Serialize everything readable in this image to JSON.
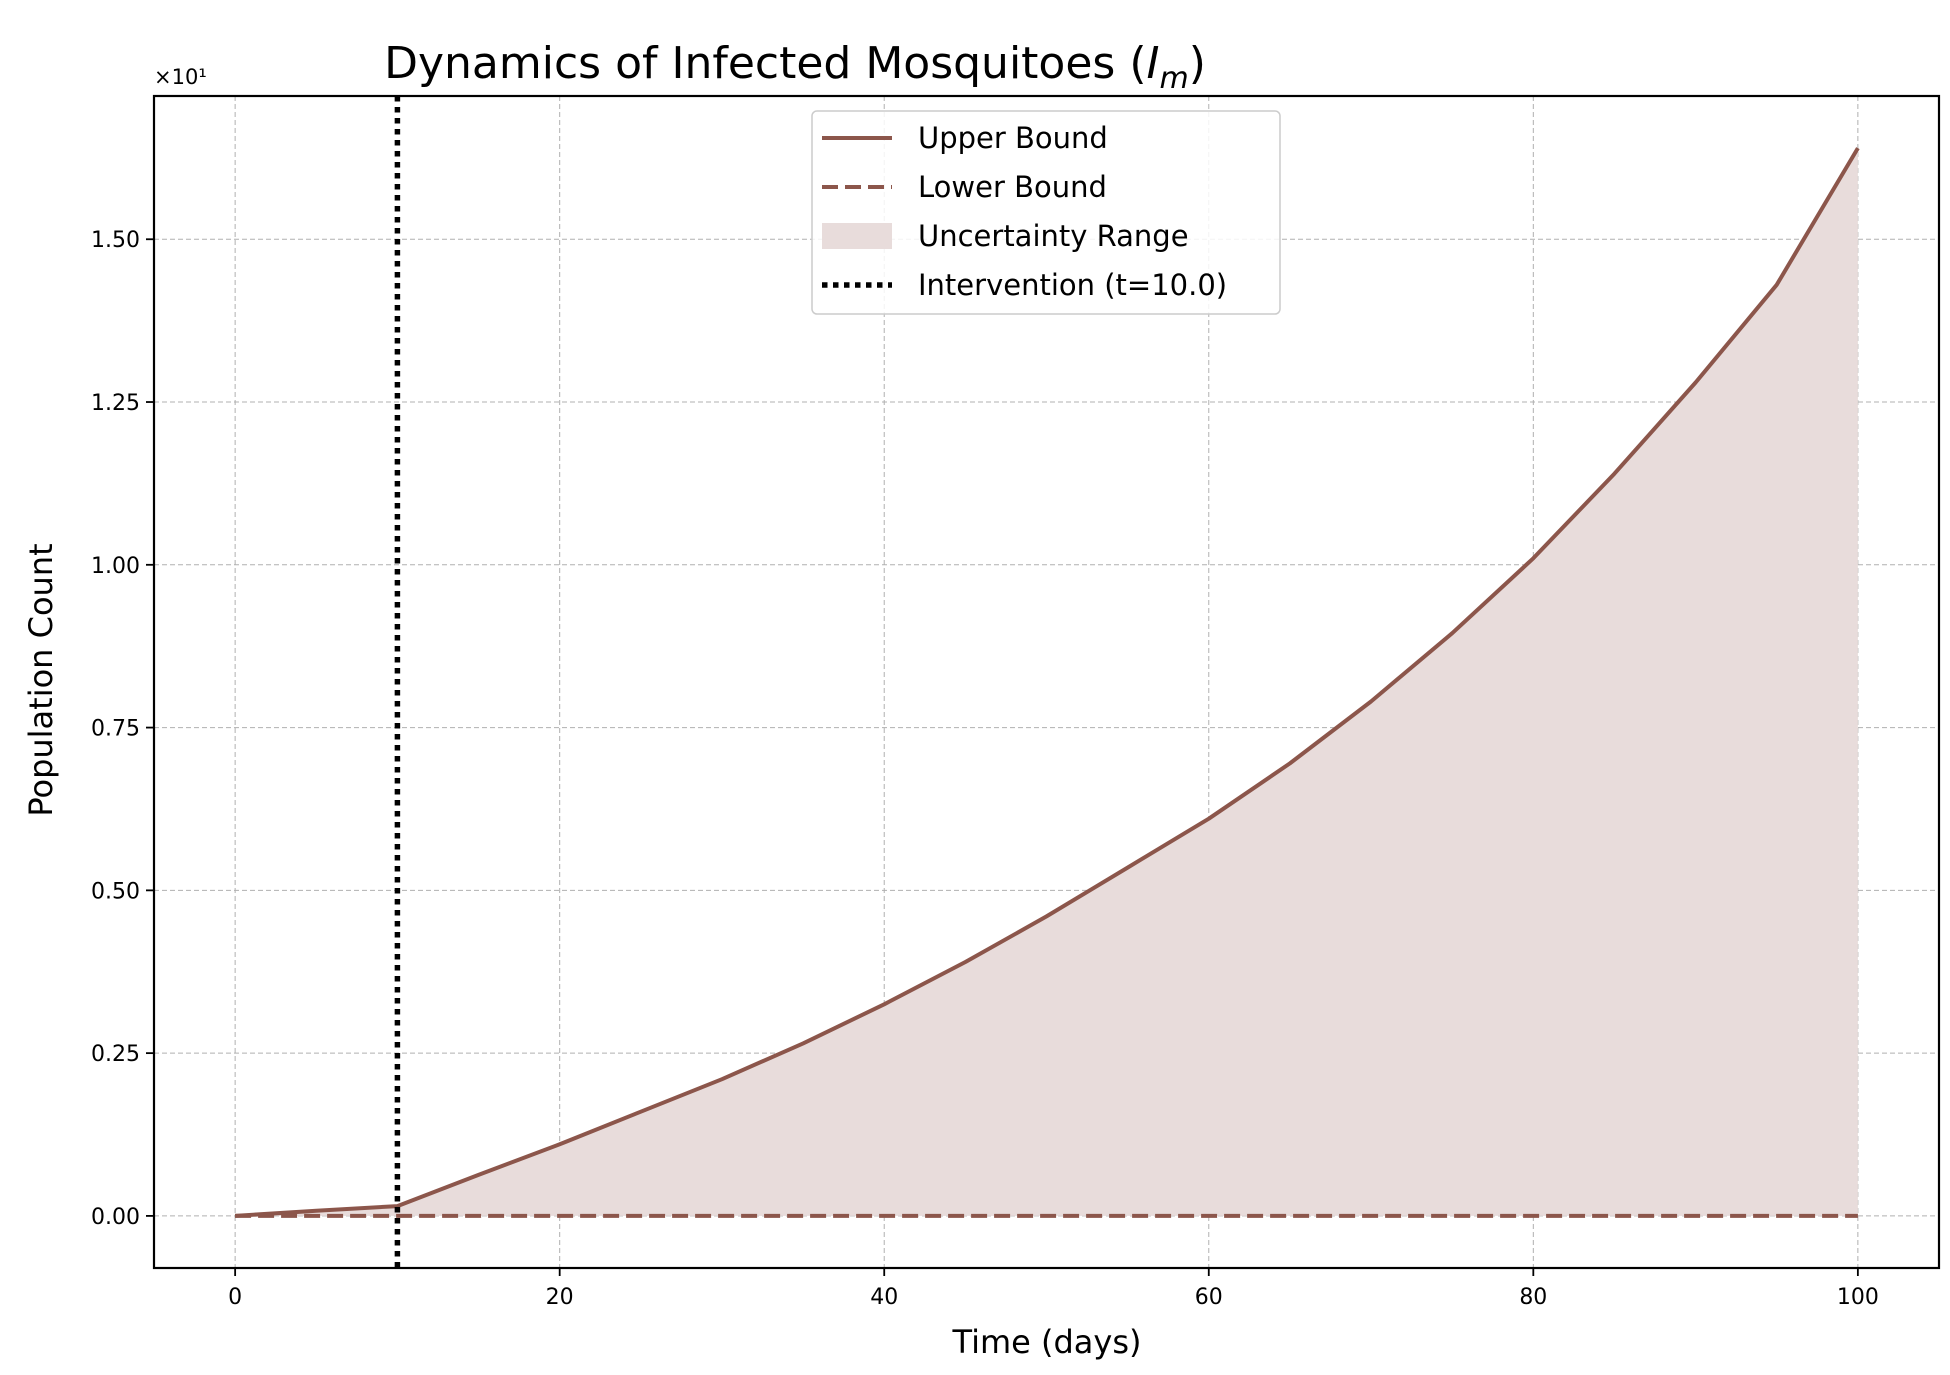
{
  "chart_data": {
    "type": "area",
    "title_main": "Dynamics of Infected Mosquitoes (",
    "title_var": "I",
    "title_sub": "m",
    "title_close": ")",
    "xlabel": "Time (days)",
    "ylabel": "Population Count",
    "y_offset_label": "×10¹",
    "xlim": [
      -5,
      105
    ],
    "ylim": [
      -0.08,
      1.72
    ],
    "x_ticks": [
      0,
      20,
      40,
      60,
      80,
      100
    ],
    "x_tick_labels": [
      "0",
      "20",
      "40",
      "60",
      "80",
      "100"
    ],
    "y_ticks": [
      0,
      0.25,
      0.5,
      0.75,
      1.0,
      1.25,
      1.5
    ],
    "y_tick_labels": [
      "0.00",
      "0.25",
      "0.50",
      "0.75",
      "1.00",
      "1.25",
      "1.50"
    ],
    "grid": true,
    "legend_position": "upper-center",
    "intervention_x": 10,
    "series": [
      {
        "name": "Upper Bound",
        "style": "solid",
        "x": [
          0,
          5,
          10,
          15,
          20,
          25,
          30,
          35,
          40,
          45,
          50,
          55,
          60,
          65,
          70,
          75,
          80,
          85,
          90,
          95,
          100
        ],
        "values": [
          0.0,
          0.008,
          0.015,
          0.063,
          0.11,
          0.16,
          0.21,
          0.265,
          0.325,
          0.39,
          0.46,
          0.535,
          0.61,
          0.695,
          0.79,
          0.895,
          1.01,
          1.14,
          1.28,
          1.43,
          1.64
        ]
      },
      {
        "name": "Lower Bound",
        "style": "dashed",
        "x": [
          0,
          100
        ],
        "values": [
          0.0,
          0.0
        ]
      }
    ],
    "legend": [
      {
        "label": "Upper Bound",
        "kind": "solid"
      },
      {
        "label": "Lower Bound",
        "kind": "dashed"
      },
      {
        "label": "Uncertainty Range",
        "kind": "fill"
      },
      {
        "label": "Intervention (t=10.0)",
        "kind": "dotted"
      }
    ],
    "colors": {
      "line": "#8c564b",
      "fill": "#e8dcdb",
      "intervention": "#000000",
      "grid": "#b0b0b0"
    }
  }
}
